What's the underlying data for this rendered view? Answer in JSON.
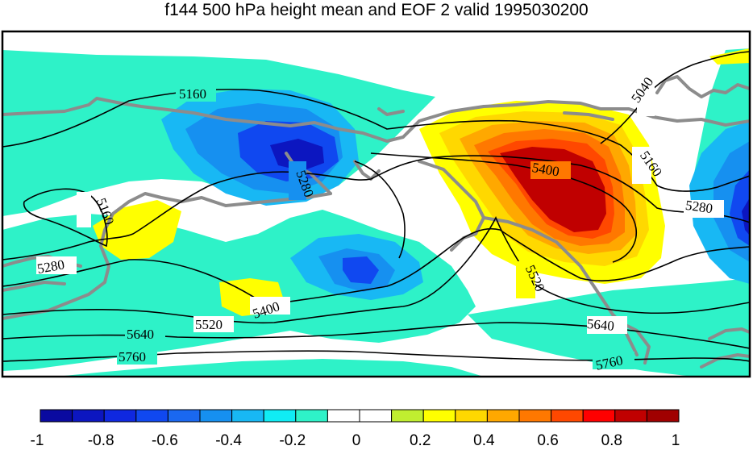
{
  "title": "f144 500 hPa height mean and EOF 2 valid 1995030200",
  "contour_labels": [
    "5160",
    "5280",
    "5400",
    "5520",
    "5640",
    "5760",
    "5040"
  ],
  "colorbar": {
    "colors": [
      "#0a0aa0",
      "#0c16c0",
      "#0f28e0",
      "#1048f0",
      "#1a68f0",
      "#1690f0",
      "#18b8f4",
      "#10ecf4",
      "#2ef2c8",
      "#ffffff",
      "#ffffff",
      "#c0ee30",
      "#ffff00",
      "#ffd800",
      "#ffa800",
      "#ff7800",
      "#ff4800",
      "#ff0000",
      "#c00000",
      "#a00000"
    ],
    "tick_labels": [
      "-1",
      "-0.8",
      "-0.6",
      "-0.4",
      "-0.2",
      "0",
      "0.2",
      "0.4",
      "0.6",
      "0.8",
      "1"
    ]
  },
  "fill_colors": {
    "cyan": "#2ef2c8",
    "lightblue": "#18b8f4",
    "blue": "#1690f0",
    "darkblue": "#1048f0",
    "deepblue": "#0c16c0",
    "yellow": "#ffff00",
    "gold": "#ffd800",
    "orange": "#ffa800",
    "darkorange": "#ff7800",
    "red": "#ff4800",
    "darkred": "#c00000"
  },
  "coastline_color": "#8c8c8c"
}
